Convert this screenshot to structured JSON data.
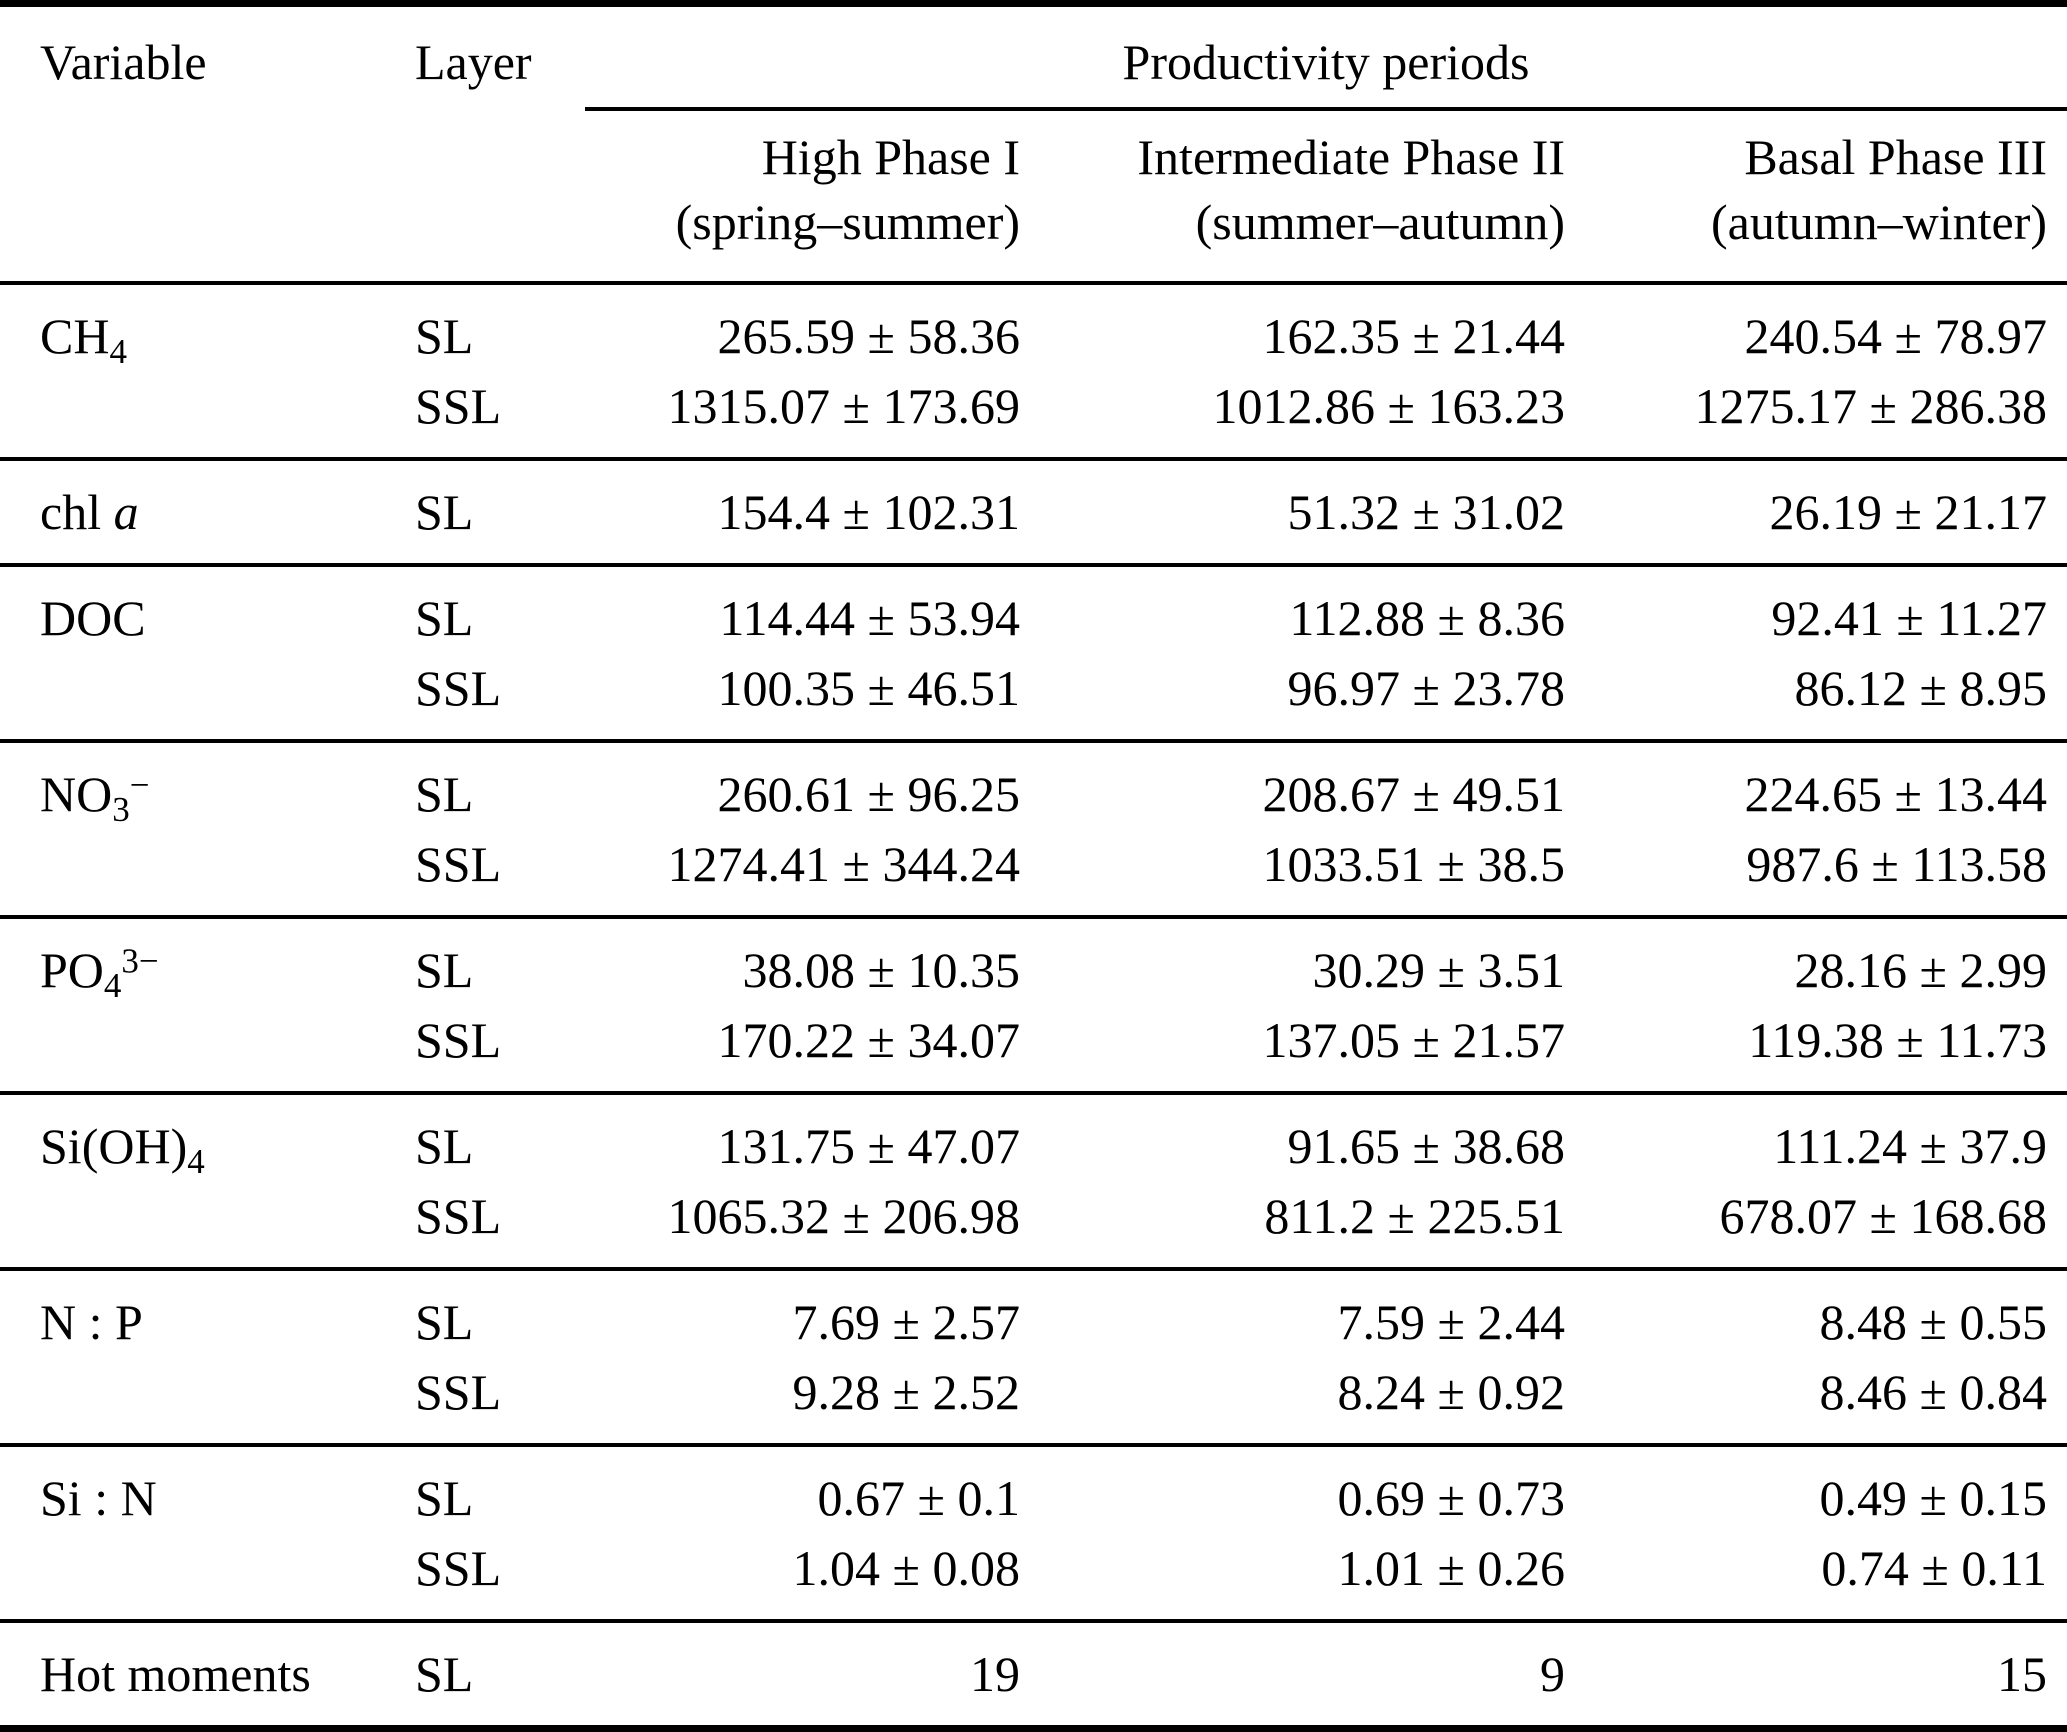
{
  "table": {
    "header": {
      "variable_label": "Variable",
      "layer_label": "Layer",
      "group_label": "Productivity periods",
      "periods": [
        {
          "line1": "High Phase I",
          "line2": "(spring–summer)"
        },
        {
          "line1": "Intermediate Phase II",
          "line2": "(summer–autumn)"
        },
        {
          "line1": "Basal Phase III",
          "line2": "(autumn–winter)"
        }
      ]
    },
    "groups": [
      {
        "variable": {
          "base": "CH",
          "italic": "",
          "sub": "4",
          "sup": ""
        },
        "rows": [
          {
            "layer": "SL",
            "values": [
              "265.59 ± 58.36",
              "162.35 ± 21.44",
              "240.54 ± 78.97"
            ]
          },
          {
            "layer": "SSL",
            "values": [
              "1315.07 ± 173.69",
              "1012.86 ± 163.23",
              "1275.17 ± 286.38"
            ]
          }
        ]
      },
      {
        "variable": {
          "base": "chl ",
          "italic": "a",
          "sub": "",
          "sup": ""
        },
        "rows": [
          {
            "layer": "SL",
            "values": [
              "154.4 ± 102.31",
              "51.32 ± 31.02",
              "26.19 ± 21.17"
            ]
          }
        ]
      },
      {
        "variable": {
          "base": "DOC",
          "italic": "",
          "sub": "",
          "sup": ""
        },
        "rows": [
          {
            "layer": "SL",
            "values": [
              "114.44 ± 53.94",
              "112.88 ± 8.36",
              "92.41 ± 11.27"
            ]
          },
          {
            "layer": "SSL",
            "values": [
              "100.35 ± 46.51",
              "96.97 ± 23.78",
              "86.12 ± 8.95"
            ]
          }
        ]
      },
      {
        "variable": {
          "base": "NO",
          "italic": "",
          "sub": "3",
          "sup": "−"
        },
        "rows": [
          {
            "layer": "SL",
            "values": [
              "260.61 ± 96.25",
              "208.67 ± 49.51",
              "224.65 ± 13.44"
            ]
          },
          {
            "layer": "SSL",
            "values": [
              "1274.41 ± 344.24",
              "1033.51 ± 38.5",
              "987.6 ± 113.58"
            ]
          }
        ]
      },
      {
        "variable": {
          "base": "PO",
          "italic": "",
          "sub": "4",
          "sup": "3−"
        },
        "rows": [
          {
            "layer": "SL",
            "values": [
              "38.08 ± 10.35",
              "30.29 ± 3.51",
              "28.16 ± 2.99"
            ]
          },
          {
            "layer": "SSL",
            "values": [
              "170.22 ± 34.07",
              "137.05 ± 21.57",
              "119.38 ± 11.73"
            ]
          }
        ]
      },
      {
        "variable": {
          "base": "Si(OH)",
          "italic": "",
          "sub": "4",
          "sup": ""
        },
        "rows": [
          {
            "layer": "SL",
            "values": [
              "131.75 ± 47.07",
              "91.65 ± 38.68",
              "111.24 ± 37.9"
            ]
          },
          {
            "layer": "SSL",
            "values": [
              "1065.32 ± 206.98",
              "811.2 ± 225.51",
              "678.07 ± 168.68"
            ]
          }
        ]
      },
      {
        "variable": {
          "base": "N : P",
          "italic": "",
          "sub": "",
          "sup": ""
        },
        "rows": [
          {
            "layer": "SL",
            "values": [
              "7.69 ± 2.57",
              "7.59 ± 2.44",
              "8.48 ± 0.55"
            ]
          },
          {
            "layer": "SSL",
            "values": [
              "9.28 ± 2.52",
              "8.24 ± 0.92",
              "8.46 ± 0.84"
            ]
          }
        ]
      },
      {
        "variable": {
          "base": "Si : N",
          "italic": "",
          "sub": "",
          "sup": ""
        },
        "rows": [
          {
            "layer": "SL",
            "values": [
              "0.67 ± 0.1",
              "0.69 ± 0.73",
              "0.49 ± 0.15"
            ]
          },
          {
            "layer": "SSL",
            "values": [
              "1.04 ± 0.08",
              "1.01 ± 0.26",
              "0.74 ± 0.11"
            ]
          }
        ]
      },
      {
        "variable": {
          "base": "Hot moments",
          "italic": "",
          "sub": "",
          "sup": ""
        },
        "rows": [
          {
            "layer": "SL",
            "values": [
              "19",
              "9",
              "15"
            ]
          }
        ]
      }
    ]
  }
}
